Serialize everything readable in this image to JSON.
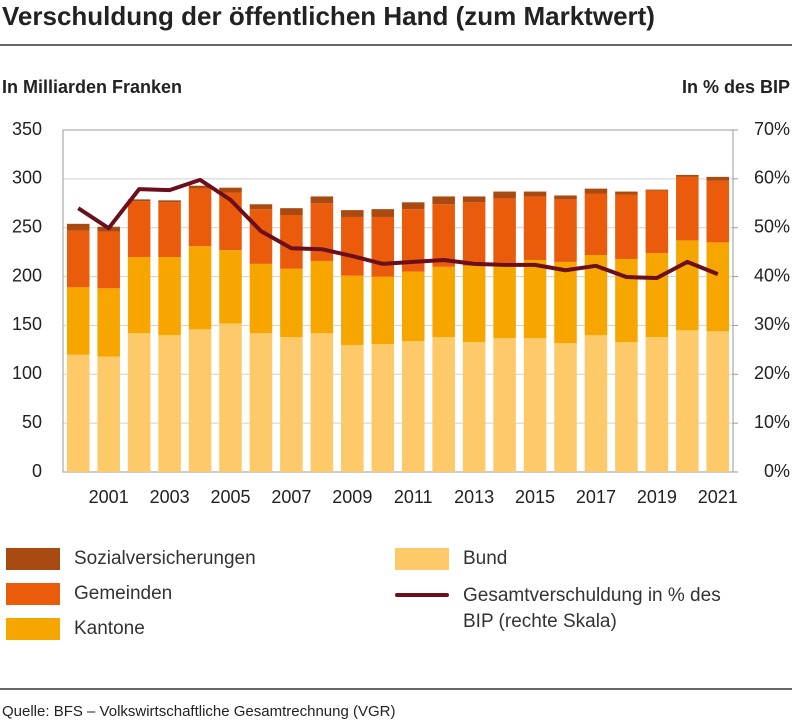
{
  "chart_data": {
    "type": "bar",
    "stacked": true,
    "title": "Verschuldung der öffentlichen Hand (zum Marktwert)",
    "y_label": "In Milliarden Franken",
    "y2_label": "In % des BIP",
    "source": "Quelle: BFS – Volkswirtschaftliche Gesamtrechnung (VGR)",
    "categories": [
      null,
      "2001",
      null,
      "2003",
      null,
      "2005",
      null,
      "2007",
      null,
      "2009",
      null,
      "2011",
      null,
      "2013",
      null,
      "2015",
      null,
      "2017",
      null,
      "2019",
      null,
      "2021"
    ],
    "series": [
      {
        "name": "Bund",
        "color": "#fdc969",
        "values": [
          120,
          118,
          142,
          140,
          146,
          152,
          142,
          138,
          142,
          130,
          131,
          134,
          138,
          133,
          137,
          137,
          132,
          140,
          133,
          138,
          145,
          144
        ]
      },
      {
        "name": "Kantone",
        "color": "#f7a600",
        "values": [
          69,
          70,
          78,
          80,
          85,
          75,
          71,
          70,
          74,
          71,
          69,
          71,
          72,
          78,
          77,
          80,
          83,
          82,
          85,
          86,
          92,
          91
        ]
      },
      {
        "name": "Gemeinden",
        "color": "#ea5b0c",
        "values": [
          58,
          58,
          57,
          56,
          59,
          59,
          56,
          55,
          59,
          60,
          61,
          64,
          64,
          65,
          66,
          65,
          64,
          63,
          66,
          64,
          65,
          63
        ]
      },
      {
        "name": "Sozialversicherungen",
        "color": "#a94a10",
        "values": [
          7,
          5,
          2,
          2,
          3,
          5,
          5,
          7,
          7,
          7,
          8,
          7,
          8,
          6,
          7,
          5,
          4,
          5,
          3,
          1,
          2,
          4
        ]
      },
      {
        "name": "Gesamtverschuldung in % des BIP (rechte Skala)",
        "color": "#6b0f1a",
        "type": "line",
        "axis": "y2",
        "values": [
          54.0,
          49.9,
          57.9,
          57.7,
          59.8,
          55.7,
          49.3,
          45.8,
          45.6,
          44.2,
          42.6,
          43.0,
          43.4,
          42.6,
          42.4,
          42.4,
          41.3,
          42.2,
          39.9,
          39.7,
          43.0,
          40.5
        ]
      }
    ],
    "ylim": [
      0,
      350
    ],
    "yticks": [
      0,
      50,
      100,
      150,
      200,
      250,
      300,
      350
    ],
    "y2lim": [
      0,
      70
    ],
    "y2ticks": [
      {
        "value": 0,
        "label": "0%"
      },
      {
        "value": 10,
        "label": "10%"
      },
      {
        "value": 20,
        "label": "20%"
      },
      {
        "value": 30,
        "label": "30%"
      },
      {
        "value": 40,
        "label": "40%"
      },
      {
        "value": 50,
        "label": "50%"
      },
      {
        "value": 60,
        "label": "60%"
      },
      {
        "value": 70,
        "label": "70%"
      }
    ],
    "grid": true
  }
}
